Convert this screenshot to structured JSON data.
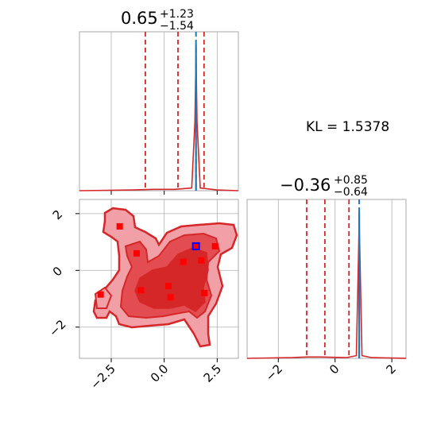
{
  "annotation": {
    "kl": "KL = 1.5378"
  },
  "titles": {
    "x1": {
      "value": "0.65",
      "plus": "+1.23",
      "minus": "−1.54"
    },
    "x2": {
      "value": "−0.36",
      "plus": "+0.85",
      "minus": "−0.64"
    }
  },
  "colors": {
    "posterior": "#d62728",
    "truth": "#1f77b4",
    "grid": "#b0b0b0",
    "marker": "#ff0000",
    "marker_highlight": "#0000ff"
  },
  "chart_data": [
    {
      "panel": "marginal-x1",
      "type": "line",
      "xlim": [
        -4,
        3.5
      ],
      "grid": true,
      "quantile_lines": [
        -0.89,
        0.65,
        1.88
      ],
      "truth_line": 1.5,
      "density": {
        "x": [
          -4,
          -1.5,
          -0.5,
          0.5,
          1.3,
          1.45,
          1.5,
          1.55,
          1.7,
          2.5,
          3.5
        ],
        "y": [
          0,
          0.005,
          0.01,
          0.01,
          0.02,
          0.5,
          1.0,
          0.5,
          0.02,
          0.005,
          0
        ]
      }
    },
    {
      "panel": "joint-x1-x2",
      "type": "scatter",
      "xlim": [
        -4,
        3.5
      ],
      "ylim": [
        -3.1,
        2.5
      ],
      "xticks": [
        "−2.5",
        "0.0",
        "2.5"
      ],
      "yticks": [
        "−2",
        "0",
        "2"
      ],
      "grid": true,
      "samples": [
        {
          "x": -2.1,
          "y": 1.55
        },
        {
          "x": -1.3,
          "y": 0.6
        },
        {
          "x": -1.1,
          "y": -0.7
        },
        {
          "x": -3.0,
          "y": -0.85
        },
        {
          "x": 0.2,
          "y": -0.55
        },
        {
          "x": 0.3,
          "y": -0.95
        },
        {
          "x": 0.9,
          "y": 0.3
        },
        {
          "x": 1.75,
          "y": 0.35
        },
        {
          "x": 2.4,
          "y": 0.85
        },
        {
          "x": 1.9,
          "y": -0.8
        }
      ],
      "truth_point": {
        "x": 1.5,
        "y": 0.85
      }
    },
    {
      "panel": "marginal-x2",
      "type": "line",
      "xlim": [
        -3.1,
        2.5
      ],
      "xticks": [
        "−2",
        "0",
        "2"
      ],
      "grid": true,
      "quantile_lines": [
        -1.0,
        -0.36,
        0.49
      ],
      "truth_line": 0.85,
      "density": {
        "x": [
          -3.1,
          -1.5,
          -1.0,
          -0.5,
          0.4,
          0.75,
          0.85,
          0.95,
          1.3,
          2.5
        ],
        "y": [
          0,
          0.005,
          0.01,
          0.01,
          0.005,
          0.02,
          1.0,
          0.02,
          0.005,
          0
        ]
      }
    }
  ]
}
